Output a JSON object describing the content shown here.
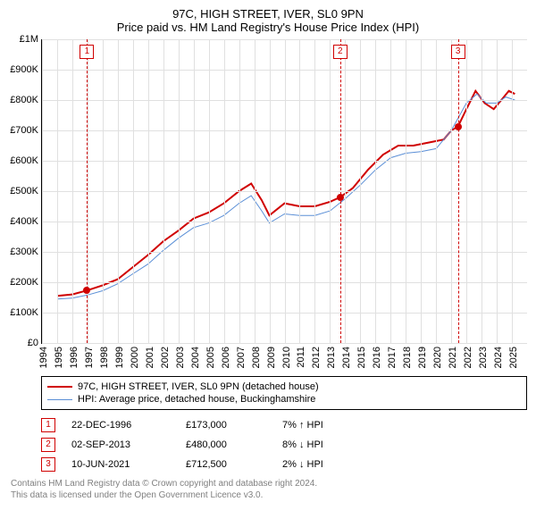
{
  "title": "97C, HIGH STREET, IVER, SL0 9PN",
  "subtitle": "Price paid vs. HM Land Registry's House Price Index (HPI)",
  "chart": {
    "type": "line",
    "x_start": 1994,
    "x_end": 2026,
    "x_ticks": [
      1994,
      1995,
      1996,
      1997,
      1998,
      1999,
      2000,
      2001,
      2002,
      2003,
      2004,
      2005,
      2006,
      2007,
      2008,
      2009,
      2010,
      2011,
      2012,
      2013,
      2014,
      2015,
      2016,
      2017,
      2018,
      2019,
      2020,
      2021,
      2022,
      2023,
      2024,
      2025
    ],
    "y_min": 0,
    "y_max": 1000000,
    "y_ticks": [
      {
        "v": 0,
        "label": "£0"
      },
      {
        "v": 100000,
        "label": "£100K"
      },
      {
        "v": 200000,
        "label": "£200K"
      },
      {
        "v": 300000,
        "label": "£300K"
      },
      {
        "v": 400000,
        "label": "£400K"
      },
      {
        "v": 500000,
        "label": "£500K"
      },
      {
        "v": 600000,
        "label": "£600K"
      },
      {
        "v": 700000,
        "label": "£700K"
      },
      {
        "v": 800000,
        "label": "£800K"
      },
      {
        "v": 900000,
        "label": "£900K"
      },
      {
        "v": 1000000,
        "label": "£1M"
      }
    ],
    "grid_color": "#e0e0e0",
    "background_color": "#ffffff",
    "series": [
      {
        "name": "97C, HIGH STREET, IVER, SL0 9PN (detached house)",
        "color": "#d00000",
        "width": 2,
        "data": [
          [
            1995.0,
            155000
          ],
          [
            1996.0,
            160000
          ],
          [
            1996.97,
            173000
          ],
          [
            1998.0,
            190000
          ],
          [
            1999.0,
            210000
          ],
          [
            2000.0,
            250000
          ],
          [
            2001.0,
            290000
          ],
          [
            2002.0,
            335000
          ],
          [
            2003.0,
            370000
          ],
          [
            2004.0,
            410000
          ],
          [
            2005.0,
            430000
          ],
          [
            2006.0,
            460000
          ],
          [
            2007.0,
            500000
          ],
          [
            2007.8,
            525000
          ],
          [
            2008.5,
            470000
          ],
          [
            2009.0,
            420000
          ],
          [
            2010.0,
            460000
          ],
          [
            2011.0,
            450000
          ],
          [
            2012.0,
            450000
          ],
          [
            2013.0,
            465000
          ],
          [
            2013.67,
            480000
          ],
          [
            2014.5,
            510000
          ],
          [
            2015.5,
            570000
          ],
          [
            2016.5,
            620000
          ],
          [
            2017.5,
            650000
          ],
          [
            2018.5,
            650000
          ],
          [
            2019.5,
            660000
          ],
          [
            2020.5,
            670000
          ],
          [
            2021.0,
            700000
          ],
          [
            2021.44,
            712500
          ],
          [
            2022.0,
            770000
          ],
          [
            2022.6,
            830000
          ],
          [
            2023.2,
            790000
          ],
          [
            2023.8,
            770000
          ],
          [
            2024.3,
            800000
          ],
          [
            2024.8,
            830000
          ],
          [
            2025.2,
            820000
          ]
        ]
      },
      {
        "name": "HPI: Average price, detached house, Buckinghamshire",
        "color": "#5b8fd6",
        "width": 1,
        "data": [
          [
            1995.0,
            145000
          ],
          [
            1996.0,
            148000
          ],
          [
            1997.0,
            158000
          ],
          [
            1998.0,
            172000
          ],
          [
            1999.0,
            195000
          ],
          [
            2000.0,
            228000
          ],
          [
            2001.0,
            260000
          ],
          [
            2002.0,
            305000
          ],
          [
            2003.0,
            345000
          ],
          [
            2004.0,
            380000
          ],
          [
            2005.0,
            395000
          ],
          [
            2006.0,
            420000
          ],
          [
            2007.0,
            460000
          ],
          [
            2007.8,
            485000
          ],
          [
            2008.5,
            435000
          ],
          [
            2009.0,
            395000
          ],
          [
            2010.0,
            425000
          ],
          [
            2011.0,
            420000
          ],
          [
            2012.0,
            420000
          ],
          [
            2013.0,
            435000
          ],
          [
            2014.0,
            475000
          ],
          [
            2015.0,
            520000
          ],
          [
            2016.0,
            570000
          ],
          [
            2017.0,
            610000
          ],
          [
            2018.0,
            625000
          ],
          [
            2019.0,
            630000
          ],
          [
            2020.0,
            640000
          ],
          [
            2021.0,
            700000
          ],
          [
            2022.0,
            790000
          ],
          [
            2022.7,
            820000
          ],
          [
            2023.3,
            790000
          ],
          [
            2024.0,
            790000
          ],
          [
            2024.6,
            810000
          ],
          [
            2025.2,
            800000
          ]
        ]
      }
    ],
    "markers": [
      {
        "n": "1",
        "x": 1996.97,
        "y": 173000
      },
      {
        "n": "2",
        "x": 2013.67,
        "y": 480000
      },
      {
        "n": "3",
        "x": 2021.44,
        "y": 712500
      }
    ]
  },
  "legend": {
    "items": [
      {
        "color": "#d00000",
        "width": 2,
        "label": "97C, HIGH STREET, IVER, SL0 9PN (detached house)"
      },
      {
        "color": "#5b8fd6",
        "width": 1,
        "label": "HPI: Average price, detached house, Buckinghamshire"
      }
    ]
  },
  "transactions": [
    {
      "n": "1",
      "date": "22-DEC-1996",
      "price": "£173,000",
      "hpi": "7% ↑ HPI"
    },
    {
      "n": "2",
      "date": "02-SEP-2013",
      "price": "£480,000",
      "hpi": "8% ↓ HPI"
    },
    {
      "n": "3",
      "date": "10-JUN-2021",
      "price": "£712,500",
      "hpi": "2% ↓ HPI"
    }
  ],
  "footer": {
    "line1": "Contains HM Land Registry data © Crown copyright and database right 2024.",
    "line2": "This data is licensed under the Open Government Licence v3.0."
  }
}
